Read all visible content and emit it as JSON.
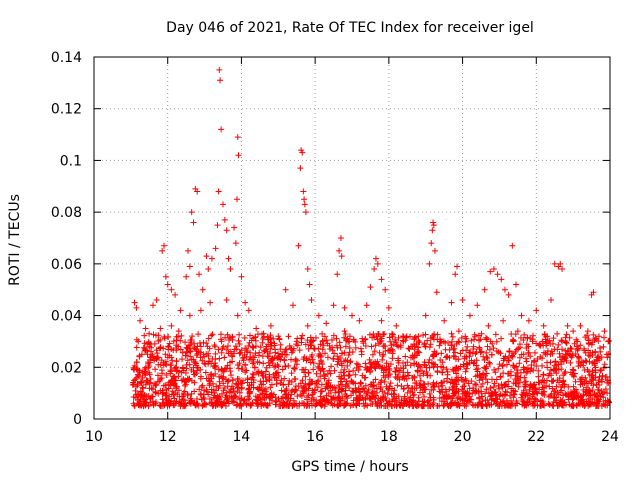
{
  "chart_data": {
    "type": "scatter",
    "title": "Day 046 of 2021, Rate Of TEC Index for receiver igel",
    "xlabel": "GPS time / hours",
    "ylabel": "ROTI / TECUs",
    "xlim": [
      10,
      24
    ],
    "ylim": [
      0,
      0.14
    ],
    "xticks": [
      10,
      12,
      14,
      16,
      18,
      20,
      22,
      24
    ],
    "xtick_labels": [
      "10",
      "12",
      "14",
      "16",
      "18",
      "20",
      "22",
      "24"
    ],
    "yticks": [
      0,
      0.02,
      0.04,
      0.06,
      0.08,
      0.1,
      0.12,
      0.14
    ],
    "ytick_labels": [
      "0",
      "0.02",
      "0.04",
      "0.06",
      "0.08",
      "0.1",
      "0.12",
      "0.14"
    ],
    "grid": true,
    "marker": "+",
    "color": "#ff0000",
    "series": [
      {
        "name": "ROTI",
        "points": [
          [
            11.1,
            0.045
          ],
          [
            11.15,
            0.043
          ],
          [
            11.25,
            0.038
          ],
          [
            11.4,
            0.035
          ],
          [
            11.6,
            0.044
          ],
          [
            11.7,
            0.046
          ],
          [
            11.85,
            0.065
          ],
          [
            11.9,
            0.067
          ],
          [
            11.95,
            0.055
          ],
          [
            12.0,
            0.052
          ],
          [
            12.1,
            0.05
          ],
          [
            12.2,
            0.048
          ],
          [
            12.35,
            0.042
          ],
          [
            12.5,
            0.055
          ],
          [
            12.55,
            0.065
          ],
          [
            12.6,
            0.059
          ],
          [
            12.65,
            0.08
          ],
          [
            12.7,
            0.076
          ],
          [
            12.75,
            0.089
          ],
          [
            12.8,
            0.088
          ],
          [
            12.85,
            0.056
          ],
          [
            12.95,
            0.05
          ],
          [
            13.05,
            0.063
          ],
          [
            13.1,
            0.058
          ],
          [
            13.2,
            0.062
          ],
          [
            13.3,
            0.066
          ],
          [
            13.35,
            0.075
          ],
          [
            13.38,
            0.088
          ],
          [
            13.4,
            0.135
          ],
          [
            13.42,
            0.131
          ],
          [
            13.45,
            0.112
          ],
          [
            13.5,
            0.083
          ],
          [
            13.55,
            0.077
          ],
          [
            13.6,
            0.073
          ],
          [
            13.65,
            0.062
          ],
          [
            13.7,
            0.058
          ],
          [
            13.8,
            0.074
          ],
          [
            13.85,
            0.068
          ],
          [
            13.88,
            0.085
          ],
          [
            13.9,
            0.109
          ],
          [
            13.92,
            0.102
          ],
          [
            14.0,
            0.055
          ],
          [
            14.1,
            0.045
          ],
          [
            14.2,
            0.042
          ],
          [
            14.4,
            0.035
          ],
          [
            14.6,
            0.033
          ],
          [
            14.8,
            0.036
          ],
          [
            15.0,
            0.032
          ],
          [
            15.2,
            0.05
          ],
          [
            15.4,
            0.044
          ],
          [
            15.55,
            0.067
          ],
          [
            15.6,
            0.097
          ],
          [
            15.62,
            0.104
          ],
          [
            15.65,
            0.103
          ],
          [
            15.68,
            0.088
          ],
          [
            15.7,
            0.085
          ],
          [
            15.72,
            0.083
          ],
          [
            15.75,
            0.08
          ],
          [
            15.8,
            0.058
          ],
          [
            15.85,
            0.052
          ],
          [
            15.9,
            0.046
          ],
          [
            16.1,
            0.04
          ],
          [
            16.3,
            0.037
          ],
          [
            16.5,
            0.044
          ],
          [
            16.6,
            0.056
          ],
          [
            16.65,
            0.065
          ],
          [
            16.7,
            0.07
          ],
          [
            16.72,
            0.063
          ],
          [
            16.8,
            0.043
          ],
          [
            17.0,
            0.04
          ],
          [
            17.2,
            0.038
          ],
          [
            17.4,
            0.044
          ],
          [
            17.5,
            0.051
          ],
          [
            17.6,
            0.058
          ],
          [
            17.65,
            0.062
          ],
          [
            17.7,
            0.06
          ],
          [
            17.8,
            0.054
          ],
          [
            17.9,
            0.05
          ],
          [
            18.0,
            0.043
          ],
          [
            18.2,
            0.036
          ],
          [
            18.4,
            0.03
          ],
          [
            18.6,
            0.028
          ],
          [
            18.8,
            0.032
          ],
          [
            19.0,
            0.04
          ],
          [
            19.1,
            0.06
          ],
          [
            19.15,
            0.068
          ],
          [
            19.18,
            0.073
          ],
          [
            19.2,
            0.076
          ],
          [
            19.22,
            0.075
          ],
          [
            19.25,
            0.065
          ],
          [
            19.3,
            0.049
          ],
          [
            19.5,
            0.038
          ],
          [
            19.7,
            0.045
          ],
          [
            19.8,
            0.056
          ],
          [
            19.85,
            0.059
          ],
          [
            20.0,
            0.046
          ],
          [
            20.2,
            0.04
          ],
          [
            20.4,
            0.044
          ],
          [
            20.6,
            0.05
          ],
          [
            20.75,
            0.057
          ],
          [
            20.85,
            0.058
          ],
          [
            20.95,
            0.056
          ],
          [
            21.05,
            0.054
          ],
          [
            21.15,
            0.05
          ],
          [
            21.25,
            0.048
          ],
          [
            21.35,
            0.067
          ],
          [
            21.45,
            0.052
          ],
          [
            21.6,
            0.04
          ],
          [
            21.8,
            0.038
          ],
          [
            22.0,
            0.042
          ],
          [
            22.2,
            0.036
          ],
          [
            22.4,
            0.046
          ],
          [
            22.5,
            0.06
          ],
          [
            22.6,
            0.059
          ],
          [
            22.65,
            0.06
          ],
          [
            22.7,
            0.058
          ],
          [
            22.85,
            0.036
          ],
          [
            23.0,
            0.034
          ],
          [
            23.2,
            0.036
          ],
          [
            23.4,
            0.034
          ],
          [
            23.5,
            0.048
          ],
          [
            23.55,
            0.049
          ],
          [
            23.7,
            0.032
          ],
          [
            23.85,
            0.034
          ],
          [
            23.95,
            0.03
          ],
          [
            11.2,
            0.03
          ],
          [
            11.3,
            0.025
          ],
          [
            11.5,
            0.028
          ],
          [
            11.8,
            0.035
          ],
          [
            12.1,
            0.036
          ],
          [
            12.3,
            0.034
          ],
          [
            12.6,
            0.04
          ],
          [
            12.9,
            0.042
          ],
          [
            13.15,
            0.045
          ],
          [
            13.6,
            0.046
          ],
          [
            13.9,
            0.04
          ],
          [
            14.3,
            0.028
          ],
          [
            14.7,
            0.026
          ],
          [
            15.1,
            0.025
          ],
          [
            15.5,
            0.03
          ],
          [
            15.8,
            0.036
          ],
          [
            16.2,
            0.03
          ],
          [
            16.8,
            0.034
          ],
          [
            17.3,
            0.03
          ],
          [
            17.8,
            0.038
          ],
          [
            18.1,
            0.032
          ],
          [
            18.5,
            0.022
          ],
          [
            19.0,
            0.028
          ],
          [
            19.4,
            0.03
          ],
          [
            19.9,
            0.034
          ],
          [
            20.3,
            0.028
          ],
          [
            20.7,
            0.036
          ],
          [
            21.1,
            0.038
          ],
          [
            21.5,
            0.034
          ],
          [
            21.9,
            0.03
          ],
          [
            22.3,
            0.032
          ],
          [
            22.7,
            0.03
          ],
          [
            23.1,
            0.028
          ],
          [
            23.6,
            0.026
          ]
        ]
      }
    ],
    "dense_band": {
      "x_range": [
        11.05,
        23.98
      ],
      "y_base": 0.002,
      "y_typical_max": 0.03,
      "description": "dense cluster of ROTI values mostly between 0.003 and 0.03"
    }
  }
}
